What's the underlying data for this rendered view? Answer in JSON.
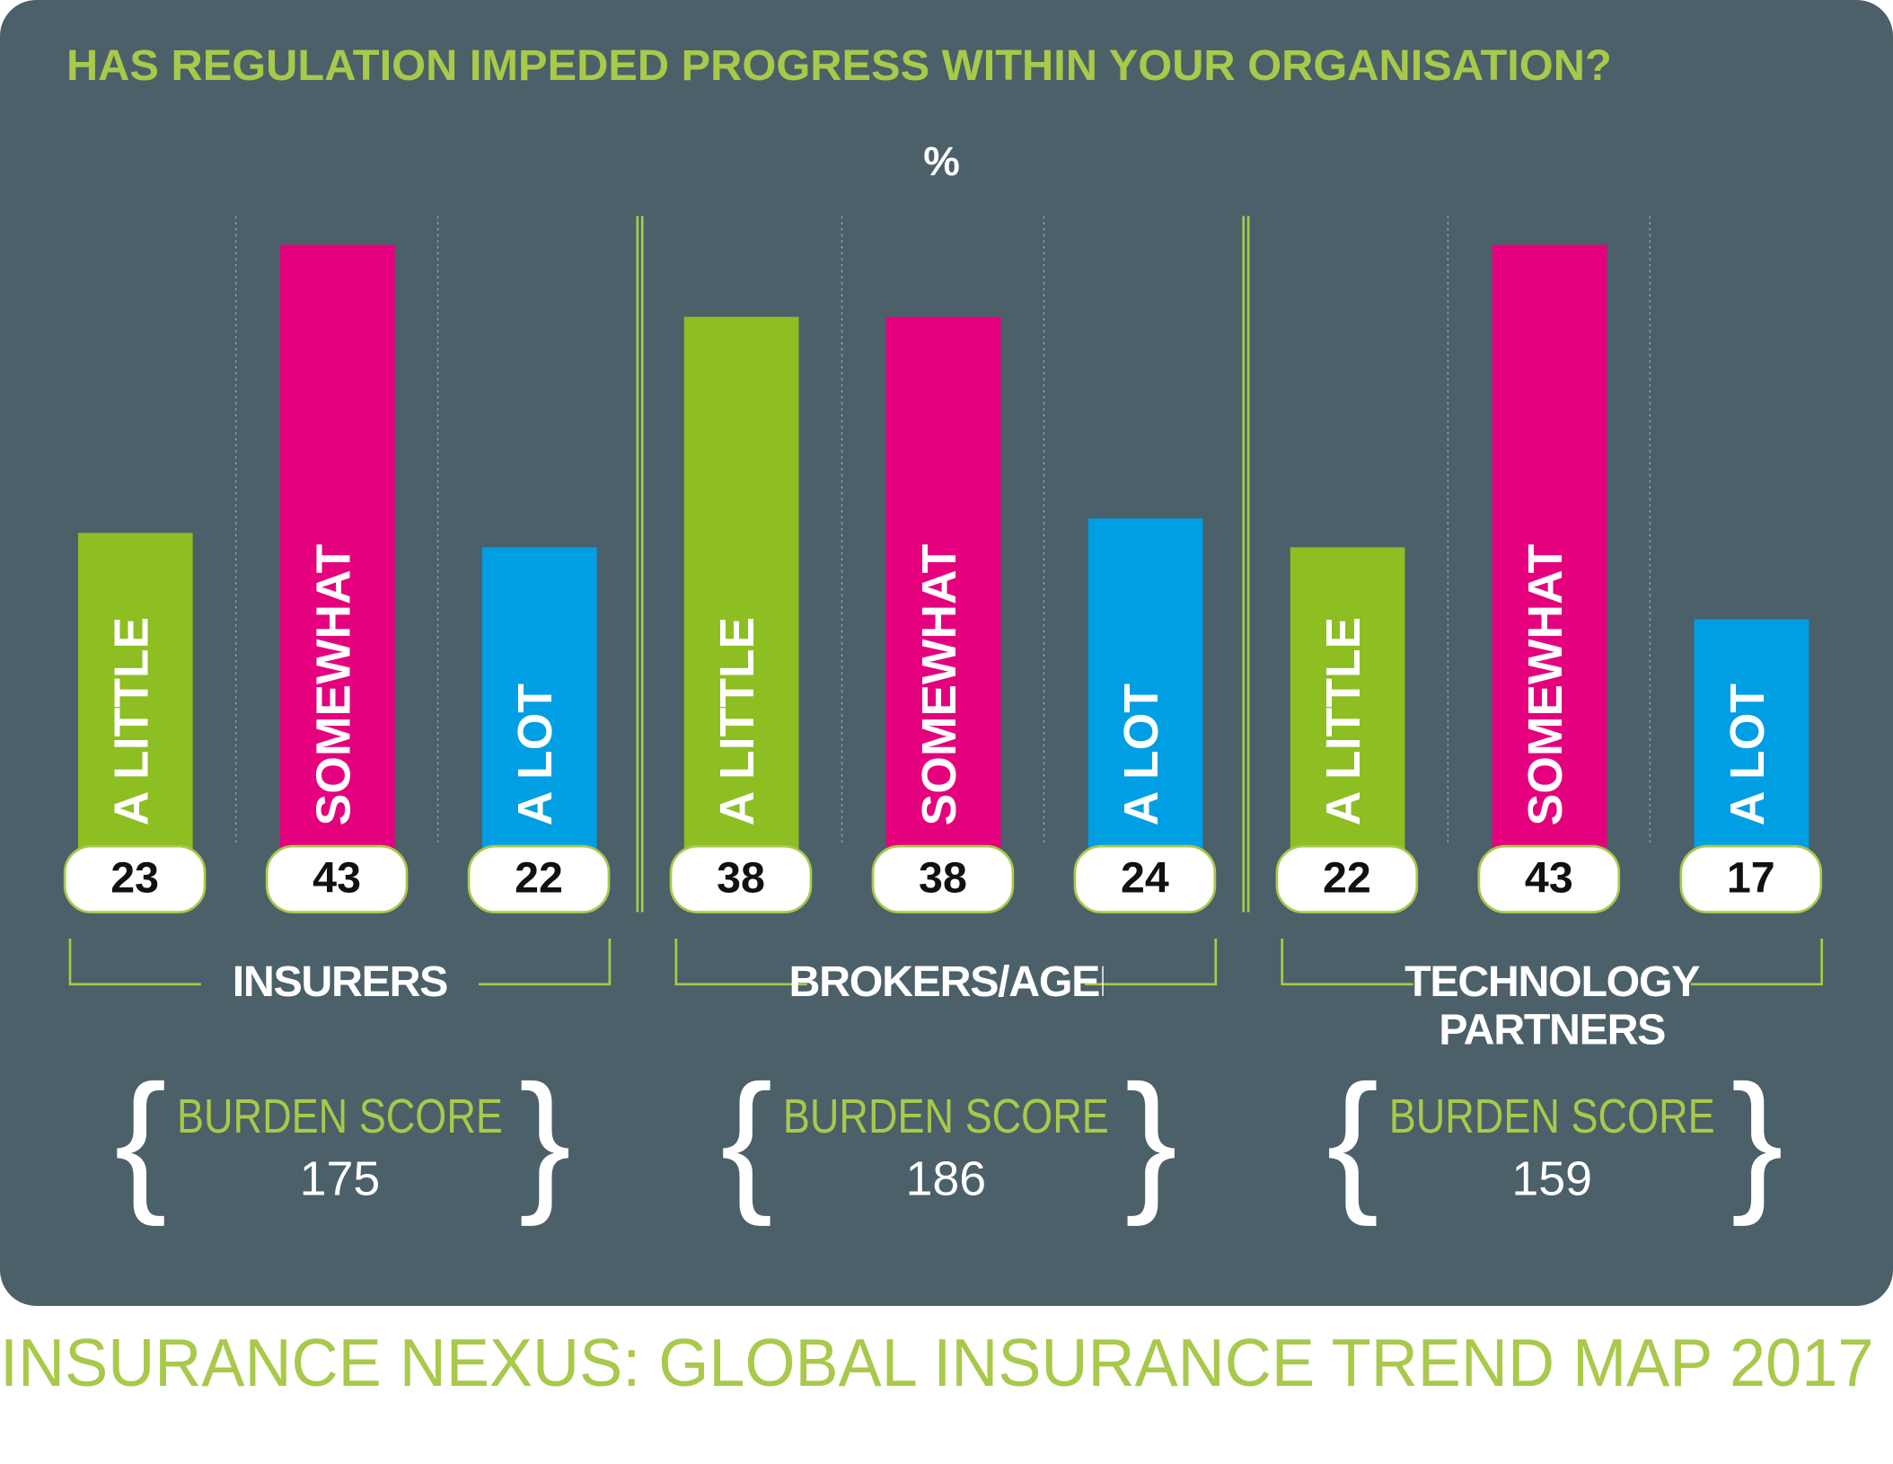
{
  "chart_data": {
    "type": "grouped_bar",
    "title": "HAS REGULATION IMPEDED PROGRESS WITHIN YOUR ORGANISATION?",
    "unit_label": "%",
    "categories": [
      "INSURERS",
      "BROKERS/AGENTS",
      "TECHNOLOGY PARTNERS"
    ],
    "series": [
      {
        "name": "A LITTLE",
        "color": "#8dbe22",
        "values": [
          23,
          38,
          22
        ]
      },
      {
        "name": "SOMEWHAT",
        "color": "#e5007d",
        "values": [
          43,
          38,
          43
        ]
      },
      {
        "name": "A LOT",
        "color": "#009fe3",
        "values": [
          22,
          24,
          17
        ]
      }
    ],
    "ylim": [
      0,
      50
    ],
    "burden_label": "BURDEN SCORE",
    "burden_scores": [
      175,
      186,
      159
    ],
    "footer": "INSURANCE NEXUS: GLOBAL INSURANCE TREND MAP 2017"
  }
}
